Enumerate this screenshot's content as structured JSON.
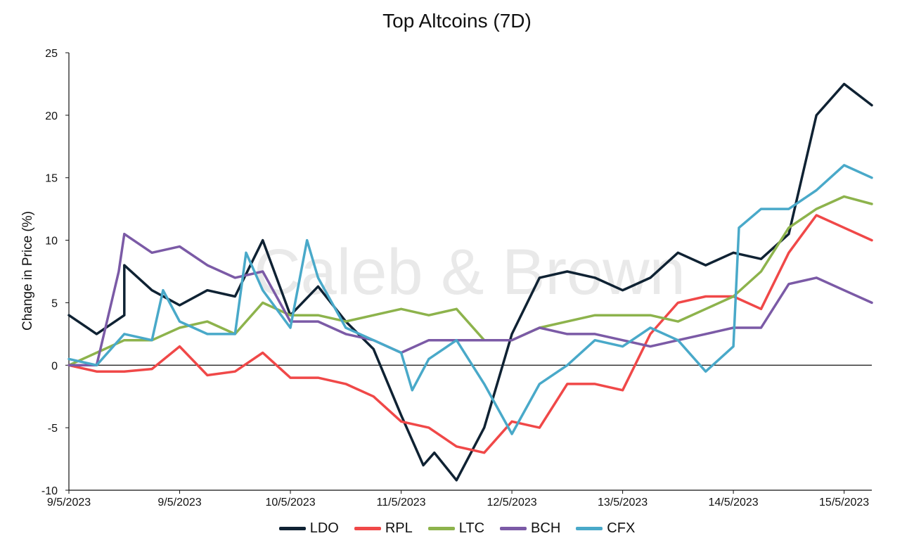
{
  "chart_data": {
    "type": "line",
    "title": "Top Altcoins (7D)",
    "xlabel": "",
    "ylabel": "Change in Price (%)",
    "ylim": [
      -10,
      25
    ],
    "yticks": [
      -10,
      -5,
      0,
      5,
      10,
      15,
      20,
      25
    ],
    "x_tick_labels": [
      "9/5/2023",
      "9/5/2023",
      "10/5/2023",
      "11/5/2023",
      "12/5/2023",
      "13/5/2023",
      "14/5/2023",
      "15/5/2023"
    ],
    "x_range_days": [
      0,
      7.25
    ],
    "watermark": "Caleb & Brown",
    "legend_position": "bottom-center",
    "series": [
      {
        "name": "LDO",
        "color": "#0f2233",
        "x": [
          0,
          0.25,
          0.5,
          0.5,
          0.75,
          1.0,
          1.25,
          1.5,
          1.75,
          2.0,
          2.25,
          2.5,
          2.75,
          3.0,
          3.2,
          3.3,
          3.5,
          3.75,
          4.0,
          4.25,
          4.5,
          4.75,
          5.0,
          5.25,
          5.5,
          5.75,
          6.0,
          6.25,
          6.5,
          6.75,
          7.0,
          7.25
        ],
        "values": [
          4.0,
          2.5,
          4.0,
          8.0,
          6.0,
          4.8,
          6.0,
          5.5,
          10.0,
          4.0,
          6.3,
          3.5,
          1.3,
          -4.0,
          -8.0,
          -7.0,
          -9.2,
          -5.0,
          2.5,
          7.0,
          7.5,
          7.0,
          6.0,
          7.0,
          9.0,
          8.0,
          9.0,
          8.5,
          10.5,
          20.0,
          22.5,
          20.8
        ]
      },
      {
        "name": "RPL",
        "color": "#f04848",
        "x": [
          0,
          0.25,
          0.5,
          0.75,
          1.0,
          1.25,
          1.5,
          1.75,
          2.0,
          2.25,
          2.5,
          2.75,
          3.0,
          3.25,
          3.5,
          3.75,
          4.0,
          4.25,
          4.5,
          4.75,
          5.0,
          5.25,
          5.5,
          5.75,
          6.0,
          6.25,
          6.5,
          6.75,
          7.0,
          7.25
        ],
        "values": [
          0.0,
          -0.5,
          -0.5,
          -0.3,
          1.5,
          -0.8,
          -0.5,
          1.0,
          -1.0,
          -1.0,
          -1.5,
          -2.5,
          -4.5,
          -5.0,
          -6.5,
          -7.0,
          -4.5,
          -5.0,
          -1.5,
          -1.5,
          -2.0,
          2.5,
          5.0,
          5.5,
          5.5,
          4.5,
          9.0,
          12.0,
          11.0,
          10.0
        ]
      },
      {
        "name": "LTC",
        "color": "#8db34c",
        "x": [
          0,
          0.25,
          0.5,
          0.75,
          1.0,
          1.25,
          1.5,
          1.75,
          2.0,
          2.25,
          2.5,
          2.75,
          3.0,
          3.25,
          3.5,
          3.75,
          4.0,
          4.25,
          4.5,
          4.75,
          5.0,
          5.25,
          5.5,
          5.75,
          6.0,
          6.25,
          6.5,
          6.75,
          7.0,
          7.25
        ],
        "values": [
          0.0,
          1.0,
          2.0,
          2.0,
          3.0,
          3.5,
          2.5,
          5.0,
          4.0,
          4.0,
          3.5,
          4.0,
          4.5,
          4.0,
          4.5,
          2.0,
          2.0,
          3.0,
          3.5,
          4.0,
          4.0,
          4.0,
          3.5,
          4.5,
          5.5,
          7.5,
          11.0,
          12.5,
          13.5,
          12.9
        ]
      },
      {
        "name": "BCH",
        "color": "#7b5aa6",
        "x": [
          0,
          0.25,
          0.45,
          0.5,
          0.75,
          1.0,
          1.25,
          1.5,
          1.75,
          2.0,
          2.25,
          2.5,
          2.75,
          3.0,
          3.25,
          3.5,
          3.75,
          4.0,
          4.25,
          4.5,
          4.75,
          5.0,
          5.25,
          5.5,
          5.75,
          6.0,
          6.25,
          6.5,
          6.75,
          7.0,
          7.25
        ],
        "values": [
          0.0,
          0.0,
          7.5,
          10.5,
          9.0,
          9.5,
          8.0,
          7.0,
          7.5,
          3.5,
          3.5,
          2.5,
          2.0,
          1.0,
          2.0,
          2.0,
          2.0,
          2.0,
          3.0,
          2.5,
          2.5,
          2.0,
          1.5,
          2.0,
          2.5,
          3.0,
          3.0,
          6.5,
          7.0,
          6.0,
          5.0
        ]
      },
      {
        "name": "CFX",
        "color": "#49a9c9",
        "x": [
          0,
          0.25,
          0.5,
          0.75,
          0.85,
          1.0,
          1.25,
          1.5,
          1.6,
          1.75,
          2.0,
          2.15,
          2.25,
          2.5,
          2.75,
          3.0,
          3.1,
          3.25,
          3.5,
          3.75,
          4.0,
          4.25,
          4.5,
          4.75,
          5.0,
          5.25,
          5.5,
          5.75,
          6.0,
          6.05,
          6.25,
          6.5,
          6.75,
          7.0,
          7.25
        ],
        "values": [
          0.5,
          0.0,
          2.5,
          2.0,
          6.0,
          3.5,
          2.5,
          2.5,
          9.0,
          6.0,
          3.0,
          10.0,
          7.0,
          3.0,
          2.0,
          1.0,
          -2.0,
          0.5,
          2.0,
          -1.5,
          -5.5,
          -1.5,
          0.0,
          2.0,
          1.5,
          3.0,
          2.0,
          -0.5,
          1.5,
          11.0,
          12.5,
          12.5,
          14.0,
          16.0,
          15.0
        ]
      }
    ]
  }
}
